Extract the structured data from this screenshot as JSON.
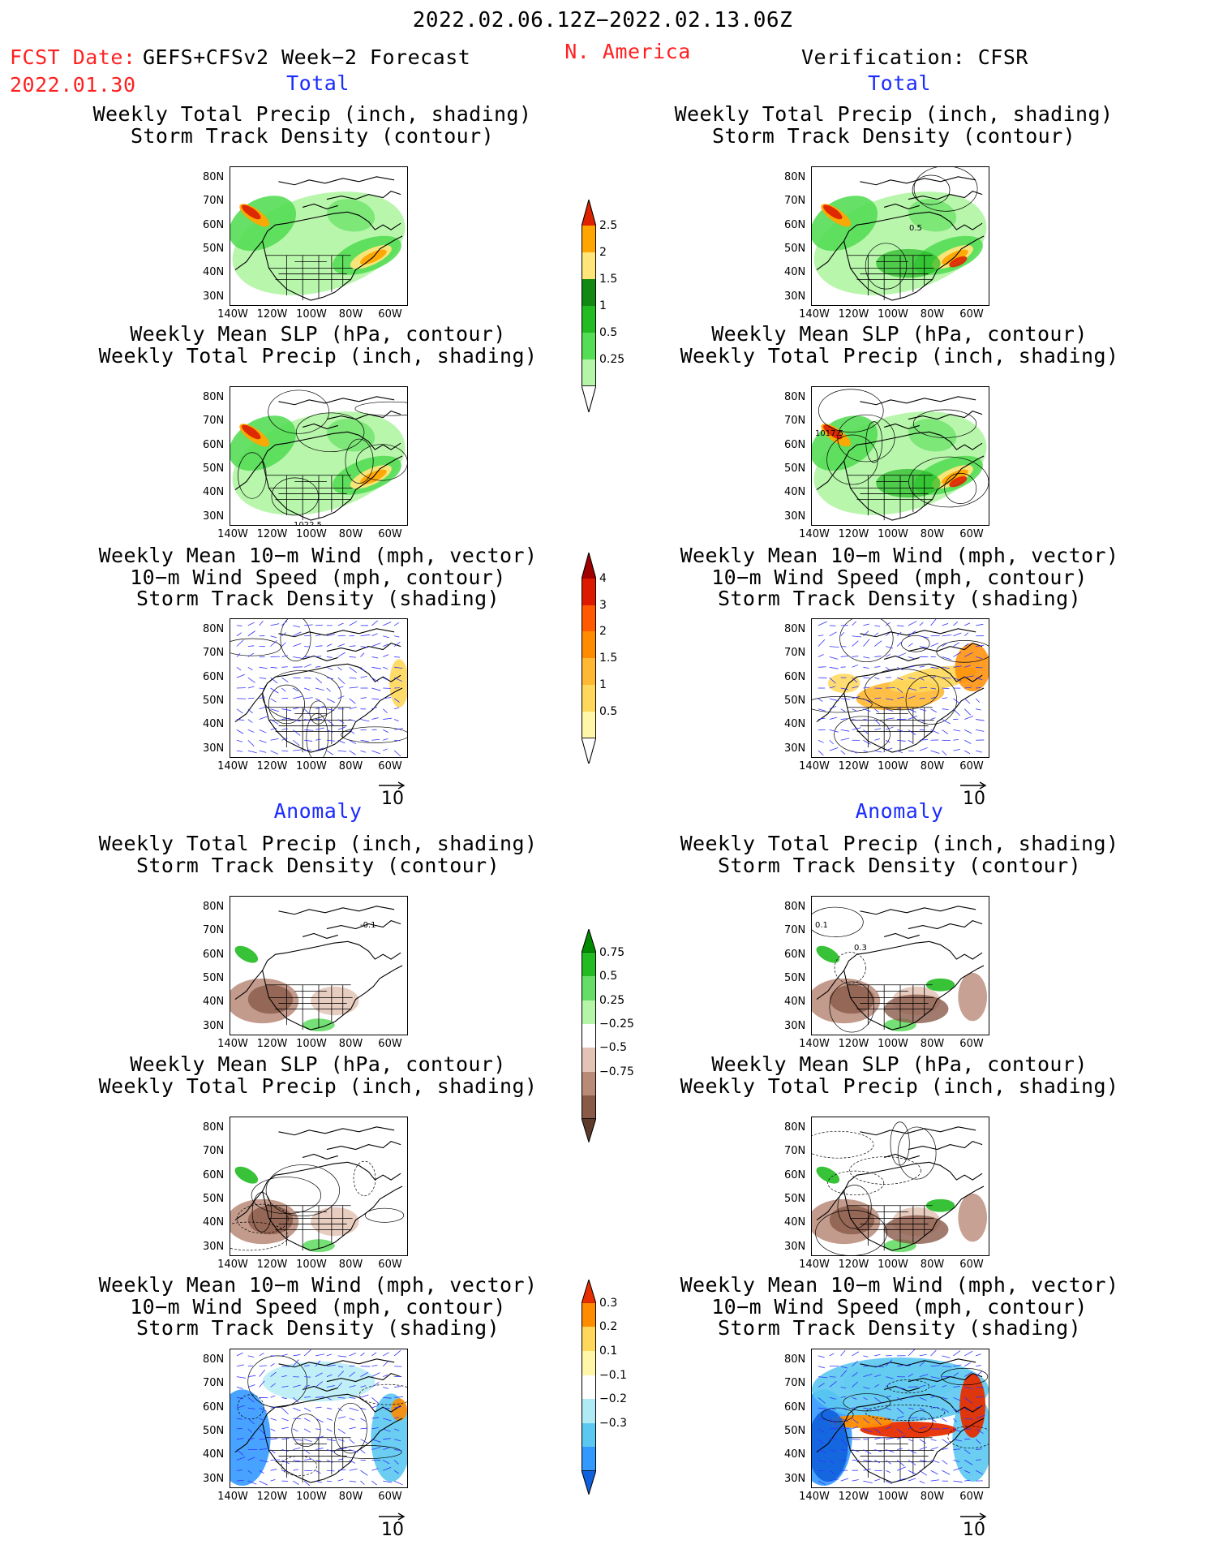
{
  "header": {
    "period": "2022.02.06.12Z−2022.02.13.06Z",
    "fcst_label": "FCST Date:",
    "fcst_date": "2022.01.30",
    "model_title": "GEFS+CFSv2 Week−2 Forecast",
    "region": "N. America",
    "verification": "Verification: CFSR"
  },
  "sections": {
    "total": "Total",
    "anomaly": "Anomaly"
  },
  "panel_titles": {
    "precip_storm": "Weekly Total Precip (inch, shading)\nStorm Track Density (contour)",
    "slp_precip": "Weekly Mean SLP (hPa, contour)\nWeekly Total Precip (inch, shading)",
    "wind_storm": "Weekly Mean 10−m Wind (mph, vector)\n10−m Wind Speed (mph, contour)\nStorm Track Density (shading)"
  },
  "axes": {
    "lat_labels": [
      "80N",
      "70N",
      "60N",
      "50N",
      "40N",
      "30N"
    ],
    "lon_labels": [
      "140W",
      "120W",
      "100W",
      "80W",
      "60W"
    ]
  },
  "vector_ref": "10",
  "map_annotations": {
    "right_total_precip": "0.5",
    "left_total_slp": "1022.5",
    "right_total_slp": "1017.5",
    "left_anom_precip": "-0.1",
    "right_anom_precip_a": "0.1",
    "right_anom_precip_b": "0.3"
  },
  "colorbars": {
    "precip_total": [
      "0.25",
      "0.5",
      "1",
      "1.5",
      "2",
      "2.5"
    ],
    "storm_total": [
      "0.5",
      "1",
      "1.5",
      "2",
      "3",
      "4"
    ],
    "precip_anom": [
      "0.75",
      "0.5",
      "0.25",
      "−0.25",
      "−0.5",
      "−0.75"
    ],
    "storm_anom": [
      "0.3",
      "0.2",
      "0.1",
      "−0.1",
      "−0.2",
      "−0.3"
    ]
  },
  "colors": {
    "precip_total": [
      "#b4f5a8",
      "#55dd55",
      "#22bb22",
      "#118811",
      "#ffe57a",
      "#ffa500",
      "#dd2200"
    ],
    "storm_total": [
      "#fff6a8",
      "#ffd75a",
      "#ffb833",
      "#ff8c00",
      "#ff5a00",
      "#dd1a00",
      "#a00000"
    ],
    "precip_anom": [
      "#008a00",
      "#22bb22",
      "#66dd66",
      "#b4f5a8",
      "#ffffff",
      "#e3c3b5",
      "#b98a78",
      "#8a5a48",
      "#5e3a2a"
    ],
    "storm_anom": [
      "#e62e00",
      "#ff8c00",
      "#ffd75a",
      "#fff6a8",
      "#ffffff",
      "#b0ebf5",
      "#5ac8f0",
      "#3399ff",
      "#1060dd"
    ]
  }
}
